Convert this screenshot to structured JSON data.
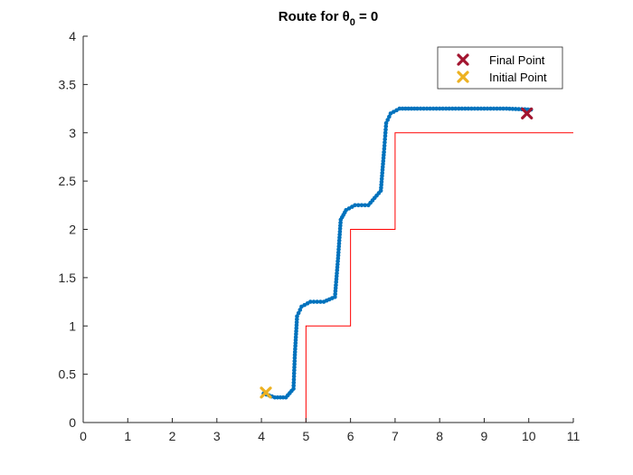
{
  "chart_data": {
    "type": "scatter",
    "title": "Route for θ",
    "title_subscript": "0",
    "title_suffix": " = 0",
    "xlabel": "",
    "ylabel": "",
    "xlim": [
      0,
      11
    ],
    "ylim": [
      0,
      4
    ],
    "xticks": [
      "0",
      "1",
      "2",
      "3",
      "4",
      "5",
      "6",
      "7",
      "8",
      "9",
      "10",
      "11"
    ],
    "yticks": [
      "0",
      "0.5",
      "1",
      "1.5",
      "2",
      "2.5",
      "3",
      "3.5",
      "4"
    ],
    "grid": false,
    "legend_position": "top-right",
    "route_color": "#0072BD",
    "boundary_color": "#FF0000",
    "final_color": "#A2142F",
    "initial_color": "#EDB120",
    "boundary": {
      "x": [
        5,
        5,
        6,
        6,
        7,
        7,
        11
      ],
      "y": [
        0,
        1,
        1,
        2,
        2,
        3,
        3
      ]
    },
    "route_keypoints": {
      "x": [
        4.05,
        4.3,
        4.55,
        4.72,
        4.75,
        4.8,
        4.9,
        5.1,
        5.4,
        5.65,
        5.72,
        5.78,
        5.9,
        6.1,
        6.4,
        6.68,
        6.75,
        6.8,
        6.9,
        7.1,
        7.5,
        8.5,
        9.5,
        10.05
      ],
      "y": [
        0.3,
        0.26,
        0.26,
        0.35,
        0.7,
        1.1,
        1.2,
        1.25,
        1.25,
        1.3,
        1.7,
        2.1,
        2.2,
        2.25,
        2.25,
        2.4,
        2.8,
        3.1,
        3.2,
        3.25,
        3.25,
        3.25,
        3.25,
        3.24
      ]
    },
    "series": [
      {
        "name": "Final Point",
        "x": [
          10.0
        ],
        "y": [
          3.2
        ]
      },
      {
        "name": "Initial Point",
        "x": [
          4.1
        ],
        "y": [
          0.31
        ]
      }
    ]
  }
}
